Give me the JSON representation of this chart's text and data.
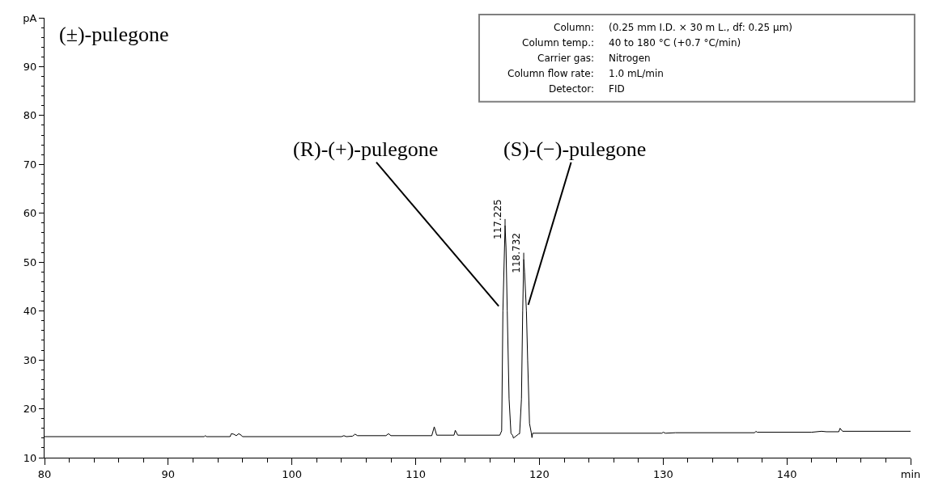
{
  "chart_data": {
    "type": "line",
    "title": "(±)-pulegone",
    "xlim": [
      80,
      150
    ],
    "xticks": [
      80,
      90,
      100,
      110,
      120,
      130,
      140,
      {
        "value": 150,
        "label": "min"
      }
    ],
    "ylim": [
      10,
      100
    ],
    "yticks": [
      10,
      20,
      30,
      40,
      50,
      60,
      70,
      80,
      90,
      {
        "value": 100,
        "label": "pA"
      }
    ],
    "marker": "none",
    "line_style": "solid",
    "series": [
      {
        "color": "#000000",
        "x": [
          80,
          92.9,
          93.0,
          93.1,
          95.0,
          95.1,
          95.3,
          95.5,
          95.7,
          95.9,
          96.0,
          104.0,
          104.2,
          104.4,
          104.9,
          105.1,
          105.3,
          107.6,
          107.8,
          108.0,
          111.3,
          111.5,
          111.7,
          113.1,
          113.2,
          113.4,
          116.8,
          116.95,
          117.05,
          117.225,
          117.3,
          117.4,
          117.55,
          117.7,
          117.85,
          117.9,
          118.3,
          118.4,
          118.55,
          118.65,
          118.732,
          118.8,
          118.95,
          119.05,
          119.2,
          119.35,
          119.4,
          119.45,
          129.9,
          130.0,
          130.2,
          131.0,
          137.4,
          137.5,
          137.6,
          142.0,
          142.8,
          143.2,
          144.2,
          144.3,
          144.5,
          150
        ],
        "values": [
          14.3,
          14.3,
          14.5,
          14.3,
          14.3,
          14.9,
          14.8,
          14.5,
          14.9,
          14.6,
          14.3,
          14.3,
          14.5,
          14.3,
          14.4,
          14.8,
          14.5,
          14.5,
          14.9,
          14.5,
          14.5,
          16.3,
          14.6,
          14.6,
          15.6,
          14.6,
          14.6,
          15.5,
          40,
          57.5,
          53,
          40,
          22,
          15,
          14.5,
          14.0,
          14.8,
          14.9,
          22,
          40,
          50.6,
          48,
          40,
          30,
          17,
          15.0,
          14.1,
          15.0,
          15.0,
          15.2,
          15.0,
          15.1,
          15.1,
          15.4,
          15.2,
          15.2,
          15.4,
          15.3,
          15.3,
          16.0,
          15.4,
          15.4
        ]
      }
    ],
    "annotations": [
      "Column: (0.25 mm I.D. × 30 m L., df: 0.25 µm)",
      "Column temp.: 40 to 180 °C (+0.7 °C/min)",
      "Carrier gas: Nitrogen",
      "Column flow rate: 1.0 mL/min",
      "Detector: FID",
      {
        "text": "117.225",
        "x": 117.225,
        "y": 57.5
      },
      {
        "text": "118.732",
        "x": 118.732,
        "y": 50.6
      },
      {
        "text": "(R)-(+)-pulegone",
        "x": 117.05,
        "y": 40
      },
      {
        "text": "(S)-(−)-pulegone",
        "x": 118.95,
        "y": 40
      }
    ]
  }
}
